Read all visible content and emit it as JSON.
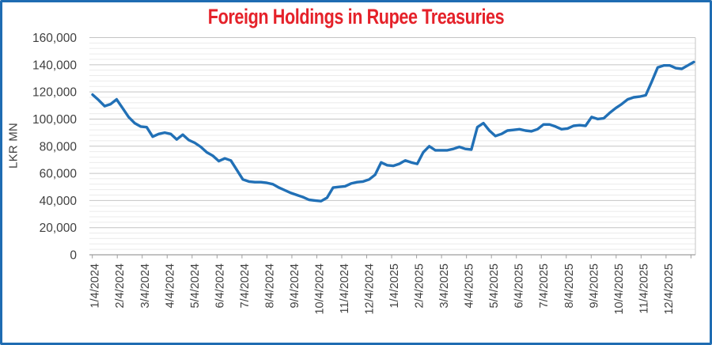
{
  "page": {
    "border_color": "#1f6cb2",
    "background": "#ffffff"
  },
  "chart_data": {
    "type": "line",
    "title": "Foreign Holdings in Rupee Treasuries",
    "title_color": "#e5222a",
    "ylabel": "LKR MN",
    "xlabel": "",
    "series_color": "#2170b6",
    "grid": "horizontal-major-and-minor",
    "legend": "none",
    "ylim": [
      0,
      160000
    ],
    "y_major_unit": 20000,
    "y_minor_unit": 4000,
    "y_ticks": [
      0,
      20000,
      40000,
      60000,
      80000,
      100000,
      120000,
      140000,
      160000
    ],
    "x_labels": [
      "1/4/2024",
      "2/4/2024",
      "3/4/2024",
      "4/4/2024",
      "5/4/2024",
      "6/4/2024",
      "7/4/2024",
      "8/4/2024",
      "9/4/2024",
      "10/4/2024",
      "11/4/2024",
      "12/4/2024",
      "1/4/2025",
      "2/4/2025",
      "3/4/2025",
      "4/4/2025",
      "5/4/2025",
      "6/4/2025",
      "7/4/2025",
      "8/4/2025",
      "9/4/2025",
      "10/4/2025",
      "11/4/2025",
      "12/4/2025"
    ],
    "values": [
      118000,
      114000,
      109500,
      111000,
      114500,
      108000,
      101500,
      97000,
      94500,
      94000,
      87000,
      89000,
      90000,
      89000,
      85000,
      88500,
      84500,
      82500,
      79500,
      75500,
      73000,
      69000,
      71000,
      69500,
      62500,
      55500,
      54000,
      53500,
      53500,
      53000,
      52000,
      49500,
      47500,
      45500,
      44000,
      42500,
      40500,
      40000,
      39500,
      42000,
      49500,
      50000,
      50500,
      52500,
      53500,
      54000,
      55500,
      59000,
      68000,
      66000,
      65500,
      67000,
      69500,
      68000,
      67000,
      75500,
      80000,
      77000,
      77000,
      77000,
      78000,
      79500,
      78000,
      77500,
      94000,
      97000,
      91500,
      87500,
      89000,
      91500,
      92000,
      92500,
      91500,
      91000,
      92500,
      96000,
      96000,
      94500,
      92500,
      93000,
      95000,
      95500,
      95000,
      101500,
      100000,
      100500,
      104500,
      108000,
      111000,
      114500,
      116000,
      116500,
      117500,
      127500,
      138000,
      139500,
      139500,
      137500,
      137000,
      139500,
      142000
    ]
  }
}
